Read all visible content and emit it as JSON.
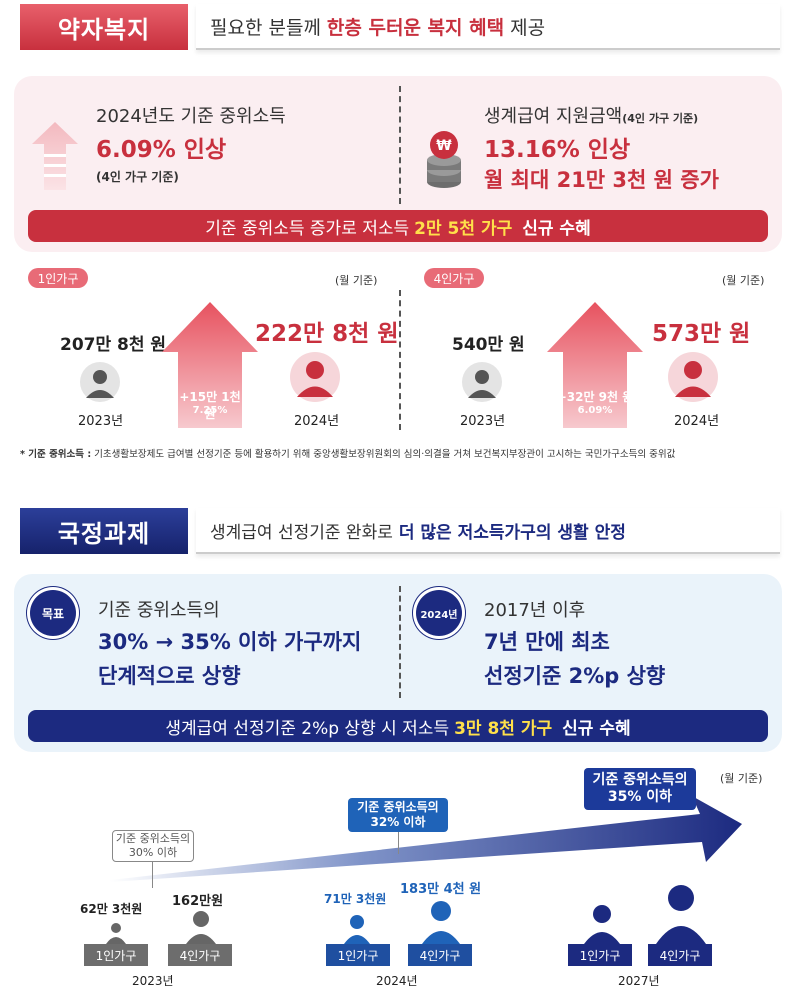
{
  "welfare": {
    "tag": "약자복지",
    "title_normal": "필요한 분들께",
    "title_highlight": "한층 두터운 복지 혜택",
    "title_end": "제공",
    "left": {
      "line1": "2024년도 기준 중위소득",
      "line2": "6.09% 인상",
      "line3": "(4인 가구 기준)"
    },
    "right": {
      "line1": "생계급여 지원금액",
      "line1_small": "(4인 가구 기준)",
      "line2": "13.16% 인상",
      "line3": "월 최대 21만 3천 원 증가"
    },
    "bar": {
      "pre": "기준 중위소득 증가로 저소득",
      "highlight": "2만 5천 가구",
      "post": "신규 수혜"
    }
  },
  "household": {
    "one": {
      "pill": "1인가구",
      "basis": "(월 기준)",
      "before": "207만 8천 원",
      "after": "222만 8천 원",
      "increase": "+15만 1천 원",
      "rate": "7.25%",
      "year_before": "2023년",
      "year_after": "2024년"
    },
    "four": {
      "pill": "4인가구",
      "basis": "(월 기준)",
      "before": "540만 원",
      "after": "573만 원",
      "increase": "+32만 9천 원",
      "rate": "6.09%",
      "year_before": "2023년",
      "year_after": "2024년"
    },
    "footnote_label": "* 기준 중위소득 :",
    "footnote_text": "기초생활보장제도 급여별 선정기준 등에 활용하기 위해 중앙생활보장위원회의 심의·의결을 거쳐 보건복지부장관이 고시하는 국민가구소득의 중위값"
  },
  "national": {
    "tag": "국정과제",
    "title_normal": "생계급여 선정기준 완화로",
    "title_highlight": "더 많은 저소득가구의 생활 안정",
    "goal_badge": "목표",
    "goal_line1": "기준 중위소득의",
    "goal_line2": "30% → 35% 이하 가구까지",
    "goal_line3": "단계적으로 상향",
    "year_badge": "2024년",
    "year_line1": "2017년 이후",
    "year_line2": "7년 만에 최초",
    "year_line3": "선정기준 2%p 상향",
    "bar": {
      "pre": "생계급여 선정기준 2%p 상향 시 저소득",
      "highlight": "3만 8천 가구",
      "post": "신규 수혜"
    }
  },
  "timeline": {
    "basis": "(월 기준)",
    "y2023": {
      "label_line1": "기준 중위소득의",
      "label_line2": "30% 이하",
      "one_amount": "62만 3천원",
      "four_amount": "162만원",
      "one_tag": "1인가구",
      "four_tag": "4인가구",
      "year": "2023년"
    },
    "y2024": {
      "label_line1": "기준 중위소득의",
      "label_line2": "32% 이하",
      "one_amount": "71만 3천원",
      "four_amount": "183만 4천 원",
      "one_tag": "1인가구",
      "four_tag": "4인가구",
      "year": "2024년"
    },
    "y2027": {
      "label_line1": "기준 중위소득의",
      "label_line2": "35% 이하",
      "one_tag": "1인가구",
      "four_tag": "4인가구",
      "year": "2027년"
    }
  },
  "colors": {
    "red": "#c8303e",
    "navy": "#1c2a80",
    "mid_blue": "#1f63b8",
    "highlight_yellow": "#ffe04a"
  }
}
